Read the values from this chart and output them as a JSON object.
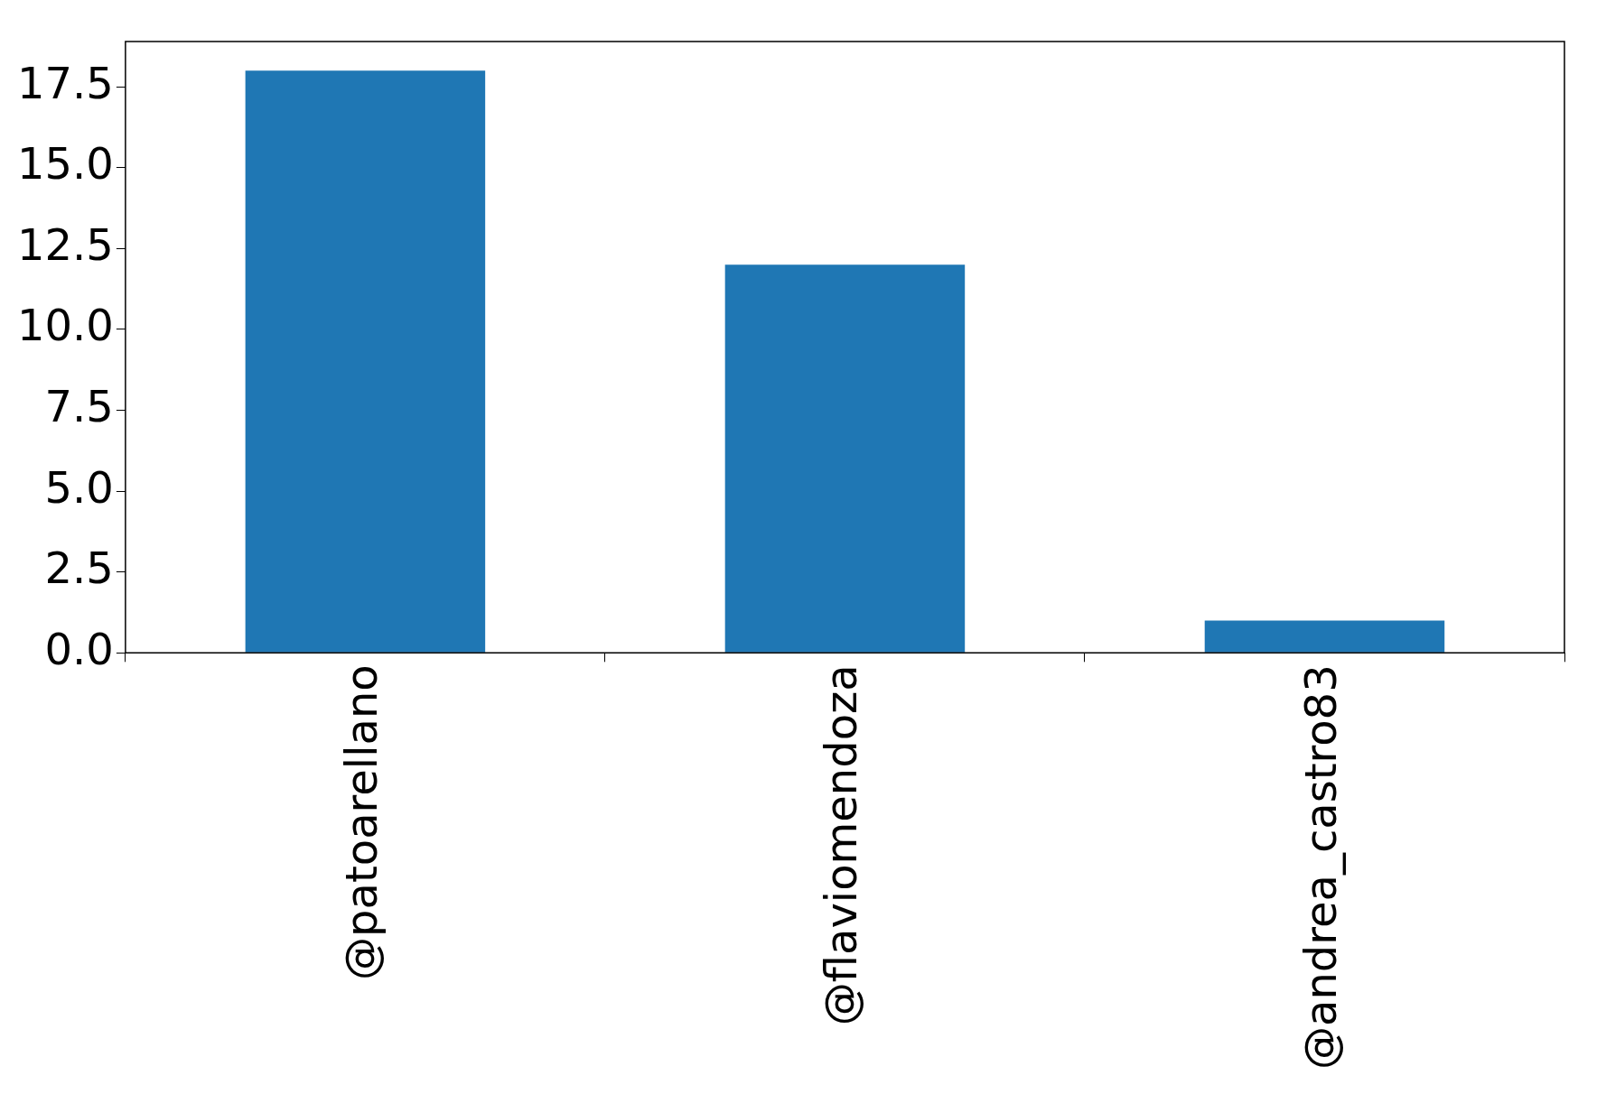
{
  "chart_data": {
    "type": "bar",
    "categories": [
      "@patoarellano",
      "@flaviomendoza",
      "@andrea_castro83"
    ],
    "values": [
      18,
      12,
      1
    ],
    "color": "#1f77b4",
    "ylim": [
      0,
      18.9
    ],
    "yticks": [
      {
        "value": 0,
        "label": "0.0"
      },
      {
        "value": 2.5,
        "label": "2.5"
      },
      {
        "value": 5,
        "label": "5.0"
      },
      {
        "value": 7.5,
        "label": "7.5"
      },
      {
        "value": 10,
        "label": "10.0"
      },
      {
        "value": 12.5,
        "label": "12.5"
      },
      {
        "value": 15,
        "label": "15.0"
      },
      {
        "value": 17.5,
        "label": "17.5"
      }
    ],
    "grid": false,
    "legend": false
  }
}
